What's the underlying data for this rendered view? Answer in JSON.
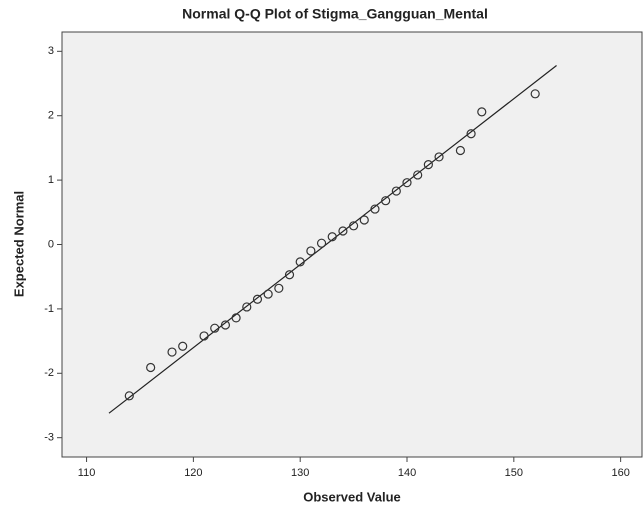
{
  "chart_data": {
    "type": "scatter",
    "title": "Normal Q-Q Plot of Stigma_Gangguan_Mental",
    "x_label": "Observed Value",
    "y_label": "Expected Normal",
    "x": [
      114,
      116,
      118,
      119,
      121,
      122,
      123,
      124,
      125,
      126,
      127,
      128,
      129,
      130,
      131,
      132,
      133,
      134,
      135,
      136,
      137,
      138,
      139,
      140,
      141,
      142,
      143,
      145,
      146,
      147,
      152
    ],
    "values": [
      -2.35,
      -1.91,
      -1.67,
      -1.58,
      -1.42,
      -1.3,
      -1.25,
      -1.14,
      -0.97,
      -0.85,
      -0.77,
      -0.68,
      -0.47,
      -0.27,
      -0.1,
      0.02,
      0.12,
      0.21,
      0.29,
      0.38,
      0.55,
      0.68,
      0.83,
      0.96,
      1.08,
      1.24,
      1.36,
      1.46,
      1.72,
      2.06,
      2.34
    ],
    "color": "#333333",
    "reference_line": {
      "x": [
        112.1,
        154
      ],
      "y": [
        -2.62,
        2.78
      ],
      "color": "#222222"
    },
    "xlim": [
      107.7,
      162
    ],
    "ylim": [
      -3.3,
      3.3
    ],
    "xticks": [
      110,
      120,
      130,
      140,
      150,
      160
    ],
    "yticks": [
      -3,
      -2,
      -1,
      0,
      1,
      2,
      3
    ]
  }
}
